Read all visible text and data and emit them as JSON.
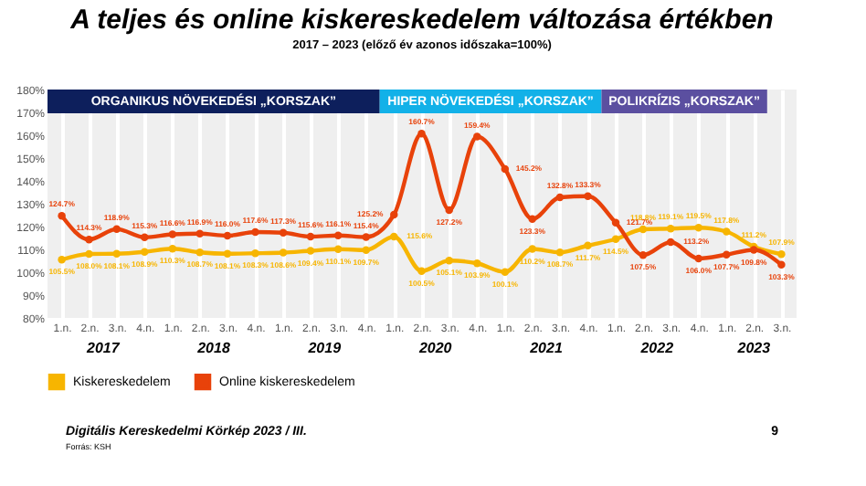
{
  "chart_data": {
    "type": "line",
    "title": "A teljes és online kiskereskedelem változása értékben",
    "subtitle": "2017 – 2023 (előző év azonos időszaka=100%)",
    "x": [
      "2017-01",
      "2017-04",
      "2017-07",
      "2017-10",
      "2018-01",
      "2018-04",
      "2018-07",
      "2018-10",
      "2019-01",
      "2019-04",
      "2019-07",
      "2019-10",
      "2020-01",
      "2020-04",
      "2020-07",
      "2020-10",
      "2021-01",
      "2021-04",
      "2021-07",
      "2021-10",
      "2022-01",
      "2022-04",
      "2022-07",
      "2022-10",
      "2023-01",
      "2023-04",
      "2023-07"
    ],
    "series": [
      {
        "name": "Kiskereskedelem",
        "color": "#f7b500",
        "values": [
          105.5,
          108.0,
          108.1,
          108.9,
          110.3,
          108.7,
          108.1,
          108.3,
          108.6,
          109.4,
          110.1,
          109.7,
          115.6,
          100.5,
          105.1,
          103.9,
          100.1,
          110.2,
          108.7,
          111.7,
          114.5,
          118.8,
          119.1,
          119.5,
          117.8,
          111.2,
          107.9
        ],
        "value_labels": [
          "105.5%",
          "108.0%",
          "108.1%",
          "108.9%",
          "110.3%",
          "108.7%",
          "108.1%",
          "108.3%",
          "108.6%",
          "109.4%",
          "110.1%",
          "109.7%",
          "115.6%",
          "100.5%",
          "105.1%",
          "103.9%",
          "100.1%",
          "110.2%",
          "108.7%",
          "111.7%",
          "114.5%",
          "118.8%",
          "119.1%",
          "119.5%",
          "117.8%",
          "111.2%",
          "107.9%"
        ]
      },
      {
        "name": "Online kiskereskedelem",
        "color": "#e8420a",
        "values": [
          124.7,
          114.3,
          118.9,
          115.3,
          116.6,
          116.9,
          116.0,
          117.6,
          117.3,
          115.6,
          116.1,
          115.4,
          125.2,
          160.7,
          127.2,
          159.4,
          145.2,
          123.3,
          132.8,
          133.3,
          121.7,
          107.5,
          113.2,
          106.0,
          107.7,
          109.8,
          103.3
        ],
        "value_labels": [
          "124.7%",
          "114.3%",
          "118.9%",
          "115.3%",
          "116.6%",
          "116.9%",
          "116.0%",
          "117.6%",
          "117.3%",
          "115.6%",
          "116.1%",
          "115.4%",
          "125.2%",
          "160.7%",
          "127.2%",
          "159.4%",
          "145.2%",
          "123.3%",
          "132.8%",
          "133.3%",
          "121.7%",
          "107.5%",
          "113.2%",
          "106.0%",
          "107.7%",
          "109.8%",
          "103.3%"
        ]
      }
    ],
    "xlim": [
      "2016-11-15",
      "2023-08-20"
    ],
    "xticks": [
      {
        "value": "2017-01",
        "label": "1.n."
      },
      {
        "value": "2017-04",
        "label": "2.n."
      },
      {
        "value": "2017-07",
        "label": "3.n."
      },
      {
        "value": "2017-10",
        "label": "4.n."
      },
      {
        "value": "2018-01",
        "label": "1.n."
      },
      {
        "value": "2018-04",
        "label": "2.n."
      },
      {
        "value": "2018-07",
        "label": "3.n."
      },
      {
        "value": "2018-10",
        "label": "4.n."
      },
      {
        "value": "2019-01",
        "label": "1.n."
      },
      {
        "value": "2019-04",
        "label": "2.n."
      },
      {
        "value": "2019-07",
        "label": "3.n."
      },
      {
        "value": "2019-10",
        "label": "4.n."
      },
      {
        "value": "2020-01",
        "label": "1.n."
      },
      {
        "value": "2020-04",
        "label": "2.n."
      },
      {
        "value": "2020-07",
        "label": "3.n."
      },
      {
        "value": "2020-10",
        "label": "4.n."
      },
      {
        "value": "2021-01",
        "label": "1.n."
      },
      {
        "value": "2021-04",
        "label": "2.n."
      },
      {
        "value": "2021-07",
        "label": "3.n."
      },
      {
        "value": "2021-10",
        "label": "4.n."
      },
      {
        "value": "2022-01",
        "label": "1.n."
      },
      {
        "value": "2022-04",
        "label": "2.n."
      },
      {
        "value": "2022-07",
        "label": "3.n."
      },
      {
        "value": "2022-10",
        "label": "4.n."
      },
      {
        "value": "2023-01",
        "label": "1.n."
      },
      {
        "value": "2023-04",
        "label": "2.n."
      },
      {
        "value": "2023-07",
        "label": "3.n."
      }
    ],
    "ylim": [
      80,
      180
    ],
    "yticks": [
      {
        "value": 80,
        "label": "80%"
      },
      {
        "value": 90,
        "label": "90%"
      },
      {
        "value": 100,
        "label": "100%"
      },
      {
        "value": 110,
        "label": "110%"
      },
      {
        "value": 120,
        "label": "120%"
      },
      {
        "value": 130,
        "label": "130%"
      },
      {
        "value": 140,
        "label": "140%"
      },
      {
        "value": 150,
        "label": "150%"
      },
      {
        "value": 160,
        "label": "160%"
      },
      {
        "value": 170,
        "label": "170%"
      },
      {
        "value": 180,
        "label": "180%"
      }
    ],
    "bands": [
      {
        "axis": "x",
        "from": "2016-11-15",
        "to": "2019-11-15",
        "label": "ORGANIKUS NÖVEKEDÉSI „KORSZAK”",
        "color": "#0d1f5c"
      },
      {
        "axis": "x",
        "from": "2019-11-15",
        "to": "2021-11-15",
        "label": "HIPER NÖVEKEDÉSI „KORSZAK”",
        "color": "#12b1e8"
      },
      {
        "axis": "x",
        "from": "2021-11-15",
        "to": "2023-05-15",
        "label": "POLIKRÍZIS „KORSZAK”",
        "color": "#5b4fa0"
      }
    ],
    "annotations": [
      "2017",
      "2018",
      "2019",
      "2020",
      "2021",
      "2022",
      "2023",
      "Digitális Kereskedelmi Körkép 2023 / III.",
      "Forrás: KSH",
      "9"
    ],
    "marker": "circle",
    "line_style": "solid",
    "grid": "x",
    "legend": "bottom"
  }
}
